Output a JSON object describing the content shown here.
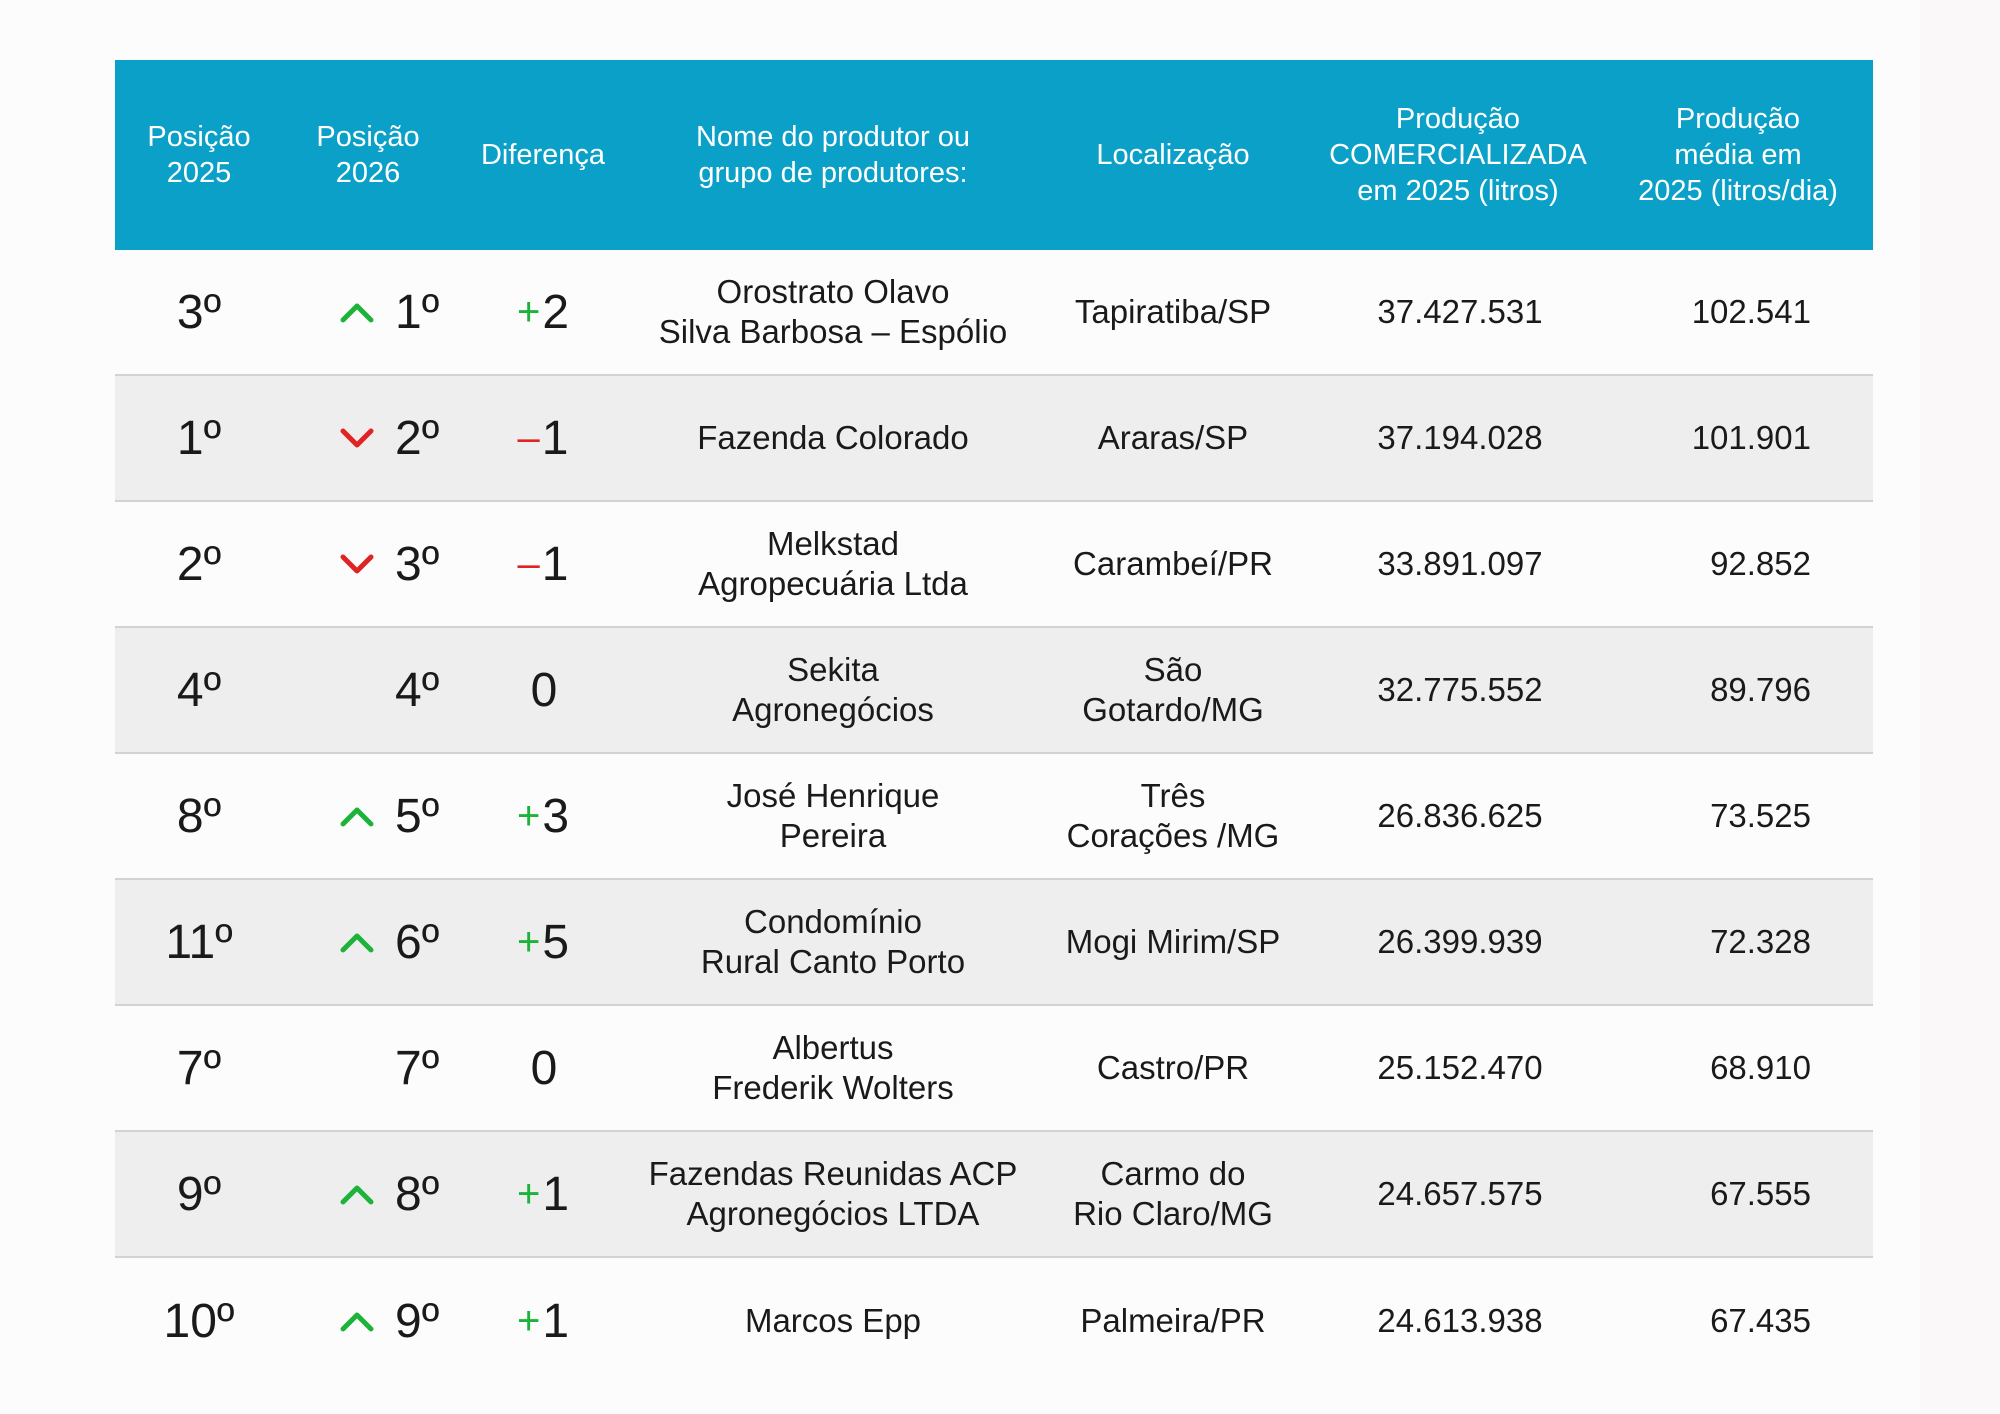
{
  "header": {
    "pos2025": "Posição\n2025",
    "pos2026": "Posição\n2026",
    "diff": "Diferença",
    "name": "Nome do produtor ou\ngrupo de produtores:",
    "location": "Localização",
    "production": "Produção\nCOMERCIALIZADA\nem 2025 (litros)",
    "average": "Produção\nmédia em\n2025 (litros/dia)"
  },
  "colors": {
    "header_bg": "#0aa0c8",
    "up": "#1db33b",
    "down": "#e02424",
    "alt_row": "#eeeeee"
  },
  "rows": [
    {
      "pos2025": "3º",
      "trend": "up",
      "pos2026": "1º",
      "diff_sign": "+",
      "diff_value": "2",
      "name": "Orostrato Olavo\nSilva Barbosa – Espólio",
      "location": "Tapiratiba/SP",
      "production": "37.427.531",
      "average": "102.541"
    },
    {
      "pos2025": "1º",
      "trend": "down",
      "pos2026": "2º",
      "diff_sign": "–",
      "diff_value": "1",
      "name": "Fazenda Colorado",
      "location": "Araras/SP",
      "production": "37.194.028",
      "average": "101.901"
    },
    {
      "pos2025": "2º",
      "trend": "down",
      "pos2026": "3º",
      "diff_sign": "–",
      "diff_value": "1",
      "name": "Melkstad\nAgropecuária Ltda",
      "location": "Carambeí/PR",
      "production": "33.891.097",
      "average": "92.852"
    },
    {
      "pos2025": "4º",
      "trend": "none",
      "pos2026": "4º",
      "diff_sign": "",
      "diff_value": "0",
      "name": "Sekita\nAgronegócios",
      "location": "São\nGotardo/MG",
      "production": "32.775.552",
      "average": "89.796"
    },
    {
      "pos2025": "8º",
      "trend": "up",
      "pos2026": "5º",
      "diff_sign": "+",
      "diff_value": "3",
      "name": "José Henrique\nPereira",
      "location": "Três\nCorações /MG",
      "production": "26.836.625",
      "average": "73.525"
    },
    {
      "pos2025": "11º",
      "trend": "up",
      "pos2026": "6º",
      "diff_sign": "+",
      "diff_value": "5",
      "name": "Condomínio\nRural Canto Porto",
      "location": "Mogi Mirim/SP",
      "production": "26.399.939",
      "average": "72.328"
    },
    {
      "pos2025": "7º",
      "trend": "none",
      "pos2026": "7º",
      "diff_sign": "",
      "diff_value": "0",
      "name": "Albertus\nFrederik Wolters",
      "location": "Castro/PR",
      "production": "25.152.470",
      "average": "68.910"
    },
    {
      "pos2025": "9º",
      "trend": "up",
      "pos2026": "8º",
      "diff_sign": "+",
      "diff_value": "1",
      "name": "Fazendas Reunidas ACP\nAgronegócios LTDA",
      "location": "Carmo do\nRio Claro/MG",
      "production": "24.657.575",
      "average": "67.555"
    },
    {
      "pos2025": "10º",
      "trend": "up",
      "pos2026": "9º",
      "diff_sign": "+",
      "diff_value": "1",
      "name": "Marcos Epp",
      "location": "Palmeira/PR",
      "production": "24.613.938",
      "average": "67.435"
    }
  ]
}
